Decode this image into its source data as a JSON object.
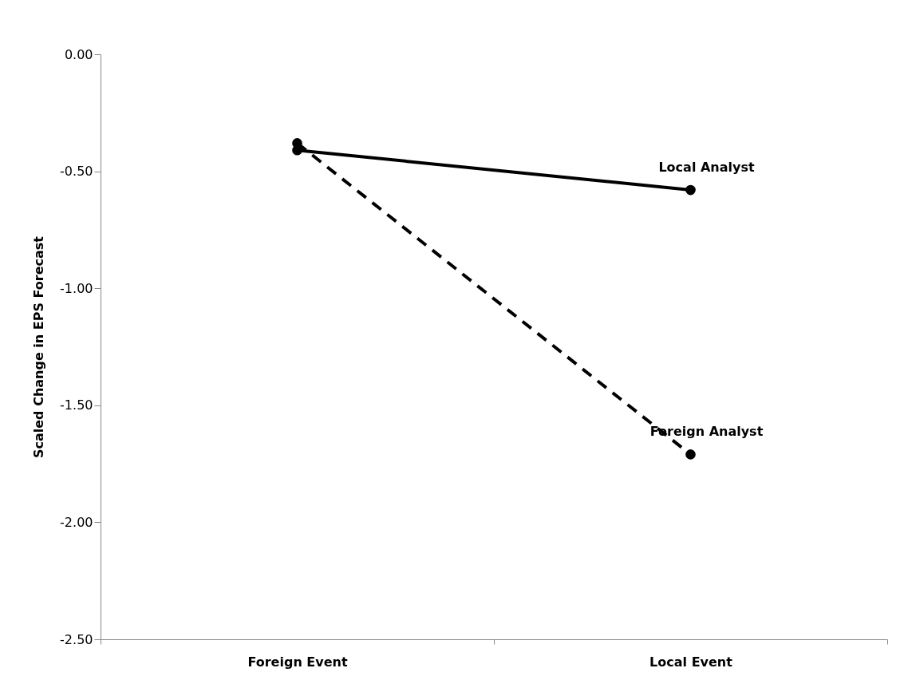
{
  "chart_data": {
    "type": "line",
    "ylabel": "Scaled Change in EPS Forecast",
    "categories": [
      "Foreign Event",
      "Local Event"
    ],
    "ylim": [
      -2.5,
      0
    ],
    "yticks": [
      {
        "value": 0,
        "label": "0.00"
      },
      {
        "value": -0.5,
        "label": "-0.50"
      },
      {
        "value": -1,
        "label": "-1.00"
      },
      {
        "value": -1.5,
        "label": "-1.50"
      },
      {
        "value": -2,
        "label": "-2.00"
      },
      {
        "value": -2.5,
        "label": "-2.50"
      }
    ],
    "grid": false,
    "marker": "circle",
    "series": [
      {
        "name": "Local Analyst",
        "color": "#000000",
        "line_style": "solid",
        "values": [
          -0.41,
          -0.58
        ]
      },
      {
        "name": "Foreign Analyst",
        "color": "#000000",
        "line_style": "dashed",
        "values": [
          -0.38,
          -1.71
        ]
      }
    ]
  }
}
